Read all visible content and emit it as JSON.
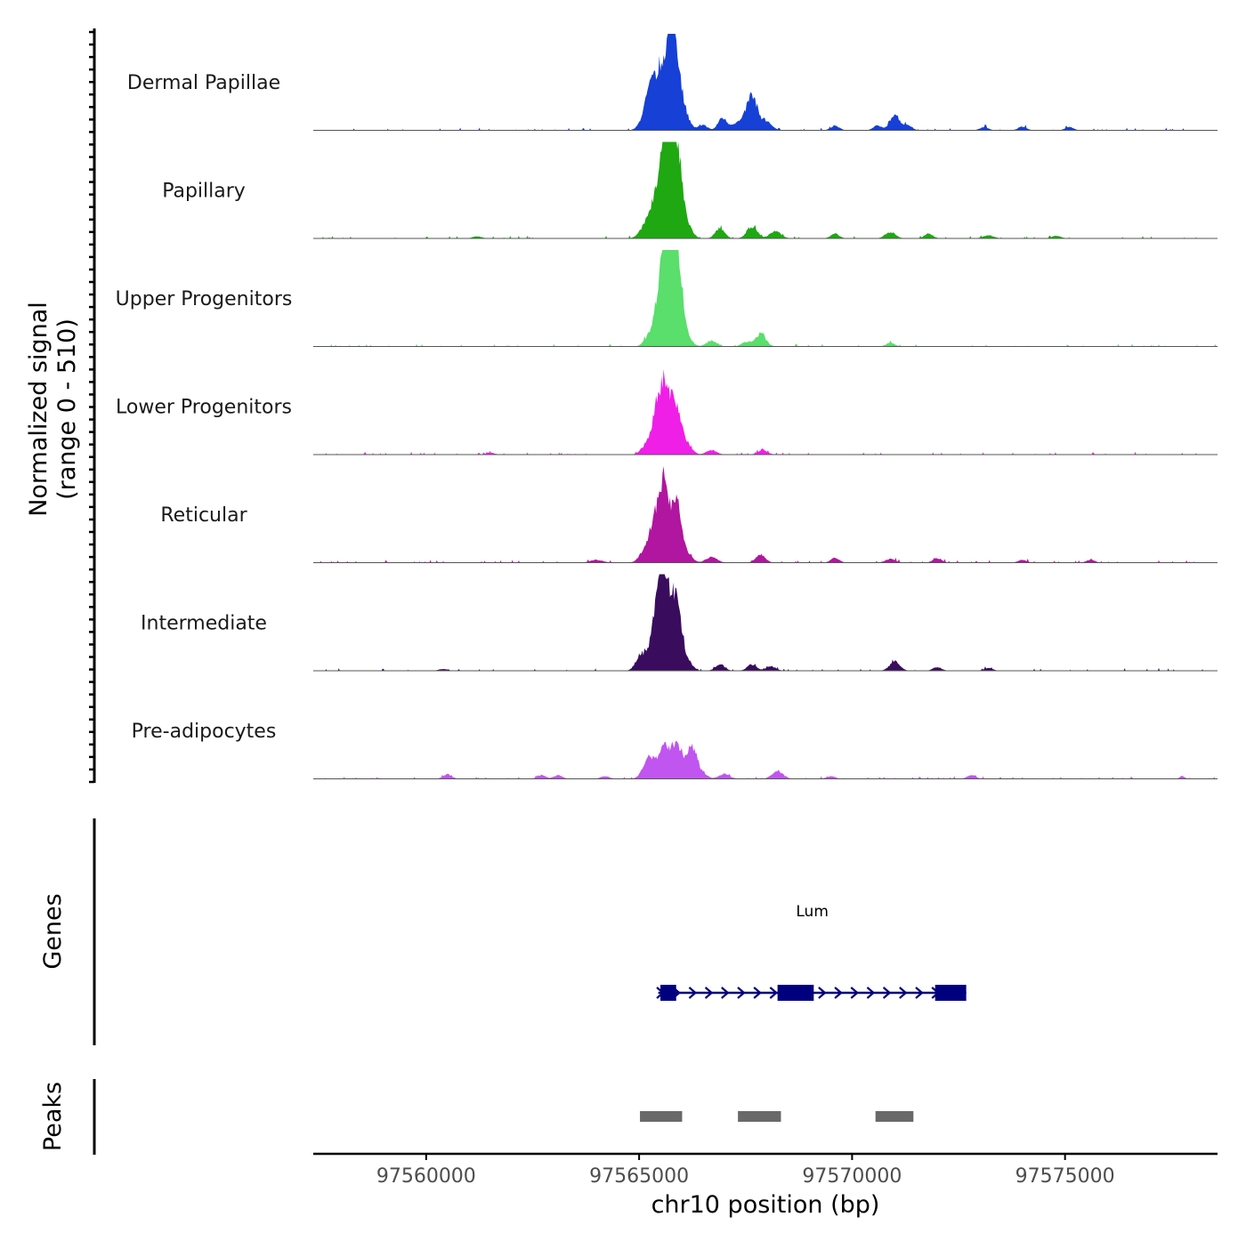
{
  "chart_data": {
    "type": "coverage_track",
    "title": "",
    "ylabel": "Normalized signal",
    "ylabel_range": "(range 0 - 510)",
    "y_range": [
      0,
      510
    ],
    "xlabel": "chr10 position (bp)",
    "chromosome": "chr10",
    "x_range": [
      97557350,
      97578580
    ],
    "x_ticks": [
      97560000,
      97565000,
      97570000,
      97575000
    ],
    "x_tick_labels": [
      "97560000",
      "97565000",
      "97570000",
      "97575000"
    ],
    "tracks": [
      {
        "name": "Dermal Papillae",
        "color": "#1640d6",
        "peaks": [
          {
            "pos": 97565250,
            "h": 170,
            "w": 150
          },
          {
            "pos": 97565550,
            "h": 290,
            "w": 180
          },
          {
            "pos": 97565800,
            "h": 490,
            "w": 130
          },
          {
            "pos": 97566050,
            "h": 90,
            "w": 130
          },
          {
            "pos": 97566500,
            "h": 30,
            "w": 100
          },
          {
            "pos": 97566950,
            "h": 65,
            "w": 100
          },
          {
            "pos": 97567650,
            "h": 190,
            "w": 130
          },
          {
            "pos": 97567300,
            "h": 40,
            "w": 150
          },
          {
            "pos": 97568000,
            "h": 45,
            "w": 120
          },
          {
            "pos": 97569600,
            "h": 25,
            "w": 100
          },
          {
            "pos": 97570600,
            "h": 25,
            "w": 100
          },
          {
            "pos": 97571000,
            "h": 90,
            "w": 110
          },
          {
            "pos": 97571300,
            "h": 30,
            "w": 100
          },
          {
            "pos": 97573100,
            "h": 18,
            "w": 100
          },
          {
            "pos": 97574000,
            "h": 20,
            "w": 100
          },
          {
            "pos": 97575100,
            "h": 18,
            "w": 100
          }
        ]
      },
      {
        "name": "Papillary",
        "color": "#1fa812",
        "peaks": [
          {
            "pos": 97565200,
            "h": 90,
            "w": 150
          },
          {
            "pos": 97565500,
            "h": 300,
            "w": 140
          },
          {
            "pos": 97565650,
            "h": 380,
            "w": 110
          },
          {
            "pos": 97565880,
            "h": 500,
            "w": 120
          },
          {
            "pos": 97566150,
            "h": 60,
            "w": 110
          },
          {
            "pos": 97566900,
            "h": 55,
            "w": 110
          },
          {
            "pos": 97567650,
            "h": 65,
            "w": 120
          },
          {
            "pos": 97568200,
            "h": 40,
            "w": 130
          },
          {
            "pos": 97569600,
            "h": 25,
            "w": 100
          },
          {
            "pos": 97570900,
            "h": 35,
            "w": 120
          },
          {
            "pos": 97571800,
            "h": 25,
            "w": 100
          },
          {
            "pos": 97573200,
            "h": 18,
            "w": 120
          },
          {
            "pos": 97574800,
            "h": 15,
            "w": 100
          },
          {
            "pos": 97561200,
            "h": 12,
            "w": 100
          }
        ]
      },
      {
        "name": "Upper Progenitors",
        "color": "#5ade6c",
        "peaks": [
          {
            "pos": 97565250,
            "h": 60,
            "w": 120
          },
          {
            "pos": 97565520,
            "h": 380,
            "w": 120
          },
          {
            "pos": 97565700,
            "h": 430,
            "w": 100
          },
          {
            "pos": 97565900,
            "h": 505,
            "w": 110
          },
          {
            "pos": 97566150,
            "h": 40,
            "w": 110
          },
          {
            "pos": 97566700,
            "h": 30,
            "w": 120
          },
          {
            "pos": 97567850,
            "h": 70,
            "w": 120
          },
          {
            "pos": 97567500,
            "h": 25,
            "w": 100
          },
          {
            "pos": 97570900,
            "h": 20,
            "w": 100
          }
        ]
      },
      {
        "name": "Lower Progenitors",
        "color": "#f01fe8",
        "peaks": [
          {
            "pos": 97565150,
            "h": 40,
            "w": 120
          },
          {
            "pos": 97565430,
            "h": 240,
            "w": 130
          },
          {
            "pos": 97565620,
            "h": 260,
            "w": 110
          },
          {
            "pos": 97565850,
            "h": 250,
            "w": 140
          },
          {
            "pos": 97566150,
            "h": 40,
            "w": 110
          },
          {
            "pos": 97566700,
            "h": 25,
            "w": 120
          },
          {
            "pos": 97567900,
            "h": 25,
            "w": 110
          },
          {
            "pos": 97561500,
            "h": 10,
            "w": 100
          }
        ]
      },
      {
        "name": "Reticular",
        "color": "#b0169f",
        "peaks": [
          {
            "pos": 97565150,
            "h": 70,
            "w": 130
          },
          {
            "pos": 97565400,
            "h": 240,
            "w": 130
          },
          {
            "pos": 97565600,
            "h": 370,
            "w": 100
          },
          {
            "pos": 97565870,
            "h": 340,
            "w": 120
          },
          {
            "pos": 97566150,
            "h": 40,
            "w": 110
          },
          {
            "pos": 97566700,
            "h": 30,
            "w": 130
          },
          {
            "pos": 97567850,
            "h": 45,
            "w": 110
          },
          {
            "pos": 97569600,
            "h": 25,
            "w": 100
          },
          {
            "pos": 97570900,
            "h": 20,
            "w": 120
          },
          {
            "pos": 97572000,
            "h": 25,
            "w": 100
          },
          {
            "pos": 97574000,
            "h": 15,
            "w": 100
          },
          {
            "pos": 97575600,
            "h": 15,
            "w": 100
          },
          {
            "pos": 97564000,
            "h": 15,
            "w": 150
          }
        ]
      },
      {
        "name": "Intermediate",
        "color": "#3a0c5e",
        "peaks": [
          {
            "pos": 97565050,
            "h": 90,
            "w": 120
          },
          {
            "pos": 97565400,
            "h": 330,
            "w": 120
          },
          {
            "pos": 97565600,
            "h": 460,
            "w": 100
          },
          {
            "pos": 97565870,
            "h": 420,
            "w": 120
          },
          {
            "pos": 97566150,
            "h": 45,
            "w": 110
          },
          {
            "pos": 97566900,
            "h": 35,
            "w": 110
          },
          {
            "pos": 97567650,
            "h": 35,
            "w": 110
          },
          {
            "pos": 97568100,
            "h": 25,
            "w": 110
          },
          {
            "pos": 97571000,
            "h": 50,
            "w": 120
          },
          {
            "pos": 97572000,
            "h": 20,
            "w": 100
          },
          {
            "pos": 97573200,
            "h": 15,
            "w": 100
          },
          {
            "pos": 97560400,
            "h": 10,
            "w": 100
          }
        ]
      },
      {
        "name": "Pre-adipocytes",
        "color": "#c055f0",
        "peaks": [
          {
            "pos": 97565250,
            "h": 120,
            "w": 140
          },
          {
            "pos": 97565600,
            "h": 170,
            "w": 130
          },
          {
            "pos": 97565900,
            "h": 180,
            "w": 130
          },
          {
            "pos": 97566250,
            "h": 175,
            "w": 110
          },
          {
            "pos": 97566500,
            "h": 30,
            "w": 100
          },
          {
            "pos": 97567000,
            "h": 25,
            "w": 130
          },
          {
            "pos": 97568250,
            "h": 40,
            "w": 130
          },
          {
            "pos": 97560500,
            "h": 25,
            "w": 100
          },
          {
            "pos": 97562700,
            "h": 20,
            "w": 100
          },
          {
            "pos": 97563100,
            "h": 20,
            "w": 100
          },
          {
            "pos": 97564200,
            "h": 15,
            "w": 100
          },
          {
            "pos": 97569500,
            "h": 15,
            "w": 100
          },
          {
            "pos": 97572800,
            "h": 20,
            "w": 100
          },
          {
            "pos": 97577750,
            "h": 15,
            "w": 60
          }
        ]
      }
    ],
    "genes_track": {
      "label": "Genes",
      "gene": {
        "name": "Lum",
        "start": 97565450,
        "end": 97572680,
        "strand": "+",
        "color": "#00007f",
        "exons": [
          [
            97565500,
            97565870
          ],
          [
            97568250,
            97569100
          ],
          [
            97571950,
            97572680
          ]
        ]
      }
    },
    "peaks_track": {
      "label": "Peaks",
      "color": "#696969",
      "regions": [
        [
          97565020,
          97566010
        ],
        [
          97567320,
          97568330
        ],
        [
          97570550,
          97571440
        ]
      ]
    }
  }
}
